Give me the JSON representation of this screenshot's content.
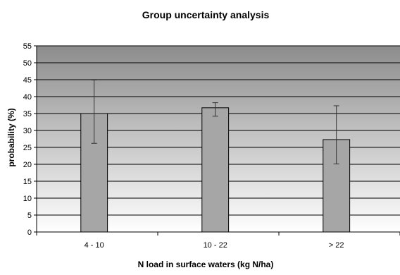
{
  "chart_data": {
    "type": "bar",
    "title": "Group uncertainty analysis",
    "xlabel": "N load in surface waters (kg N/ha)",
    "ylabel": "probability (%)",
    "categories": [
      "4 - 10",
      "10 - 22",
      "> 22"
    ],
    "values": [
      35,
      36.7,
      27.3
    ],
    "error_bars": [
      {
        "low": 26.2,
        "high": 44.9
      },
      {
        "low": 34.2,
        "high": 38.2
      },
      {
        "low": 20.1,
        "high": 37.3
      }
    ],
    "ylim": [
      0,
      55
    ],
    "yticks": [
      "0",
      "5",
      "10",
      "15",
      "20",
      "25",
      "30",
      "35",
      "40",
      "45",
      "50",
      "55"
    ],
    "grid": true,
    "legend": "none",
    "colors": {
      "bar": "#a6a6a6",
      "bar_stroke": "#000000",
      "plot_bg_top": "#8c8c8c",
      "plot_bg_bottom": "#ffffff",
      "gridline": "#000000"
    }
  }
}
